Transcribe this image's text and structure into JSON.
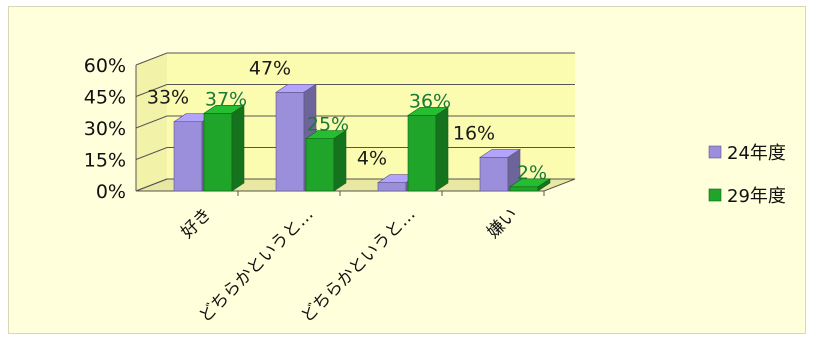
{
  "colors": {
    "background": "#ffffdc",
    "plot_back_wall": "#fcfcb0",
    "series_24": "#9b8fdc",
    "series_29": "#1fa52a",
    "label_24": "#1a1a1a",
    "label_29": "#1a7a3a"
  },
  "chart_data": {
    "type": "bar",
    "style": "3d-clustered-column",
    "categories": [
      "好き",
      "どちらかというと…",
      "どちらかというと…",
      "嫌い"
    ],
    "series": [
      {
        "name": "24年度",
        "values": [
          33,
          47,
          4,
          16
        ]
      },
      {
        "name": "29年度",
        "values": [
          37,
          25,
          36,
          2
        ]
      }
    ],
    "data_labels": [
      [
        "33%",
        "47%",
        "4%",
        "16%"
      ],
      [
        "37%",
        "25%",
        "36%",
        "2%"
      ]
    ],
    "y_ticks": [
      "60%",
      "45%",
      "30%",
      "15%",
      "0%"
    ],
    "y_tick_values": [
      60,
      45,
      30,
      15,
      0
    ],
    "ylim": [
      0,
      60
    ],
    "grid": true,
    "legend_position": "right"
  }
}
